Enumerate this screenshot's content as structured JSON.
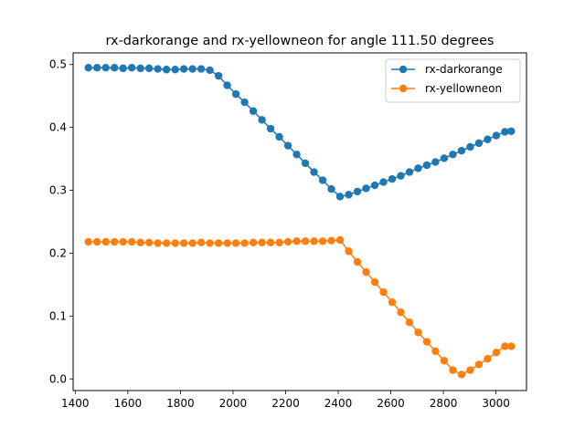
{
  "chart_data": {
    "type": "line",
    "title": "rx-darkorange and rx-yellowneon for angle 111.50 degrees",
    "xlabel": "",
    "ylabel": "",
    "xlim": [
      1392,
      3116
    ],
    "ylim": [
      -0.0185,
      0.5185
    ],
    "xticks": [
      1400,
      1600,
      1800,
      2000,
      2200,
      2400,
      2600,
      2800,
      3000
    ],
    "xtick_labels": [
      "1400",
      "1600",
      "1800",
      "2000",
      "2200",
      "2400",
      "2600",
      "2800",
      "3000"
    ],
    "yticks": [
      0.0,
      0.1,
      0.2,
      0.3,
      0.4,
      0.5
    ],
    "ytick_labels": [
      "0.0",
      "0.1",
      "0.2",
      "0.3",
      "0.4",
      "0.5"
    ],
    "grid": false,
    "legend_position": "upper-right",
    "x": [
      1450,
      1483,
      1516,
      1549,
      1582,
      1615,
      1648,
      1681,
      1714,
      1747,
      1780,
      1813,
      1846,
      1879,
      1912,
      1945,
      1978,
      2011,
      2044,
      2077,
      2110,
      2143,
      2176,
      2209,
      2242,
      2275,
      2308,
      2341,
      2374,
      2407,
      2440,
      2473,
      2506,
      2539,
      2572,
      2605,
      2638,
      2671,
      2704,
      2737,
      2770,
      2803,
      2836,
      2869,
      2902,
      2935,
      2968,
      3001,
      3034,
      3058
    ],
    "series": [
      {
        "name": "rx-darkorange",
        "color": "#1f77b4",
        "values": [
          0.495,
          0.495,
          0.495,
          0.495,
          0.494,
          0.495,
          0.494,
          0.494,
          0.493,
          0.492,
          0.492,
          0.493,
          0.493,
          0.493,
          0.491,
          0.482,
          0.467,
          0.453,
          0.44,
          0.426,
          0.412,
          0.398,
          0.385,
          0.371,
          0.357,
          0.343,
          0.329,
          0.316,
          0.302,
          0.29,
          0.293,
          0.298,
          0.303,
          0.308,
          0.313,
          0.318,
          0.323,
          0.329,
          0.335,
          0.34,
          0.345,
          0.351,
          0.357,
          0.363,
          0.369,
          0.375,
          0.381,
          0.387,
          0.393,
          0.394
        ]
      },
      {
        "name": "rx-yellowneon",
        "color": "#ff7f0e",
        "values": [
          0.218,
          0.218,
          0.218,
          0.218,
          0.218,
          0.218,
          0.217,
          0.217,
          0.216,
          0.216,
          0.216,
          0.216,
          0.216,
          0.217,
          0.216,
          0.216,
          0.216,
          0.216,
          0.216,
          0.217,
          0.217,
          0.217,
          0.217,
          0.218,
          0.219,
          0.219,
          0.219,
          0.219,
          0.22,
          0.221,
          0.203,
          0.186,
          0.17,
          0.154,
          0.138,
          0.122,
          0.106,
          0.09,
          0.074,
          0.059,
          0.044,
          0.029,
          0.014,
          0.007,
          0.014,
          0.023,
          0.032,
          0.042,
          0.052,
          0.052
        ]
      }
    ]
  }
}
